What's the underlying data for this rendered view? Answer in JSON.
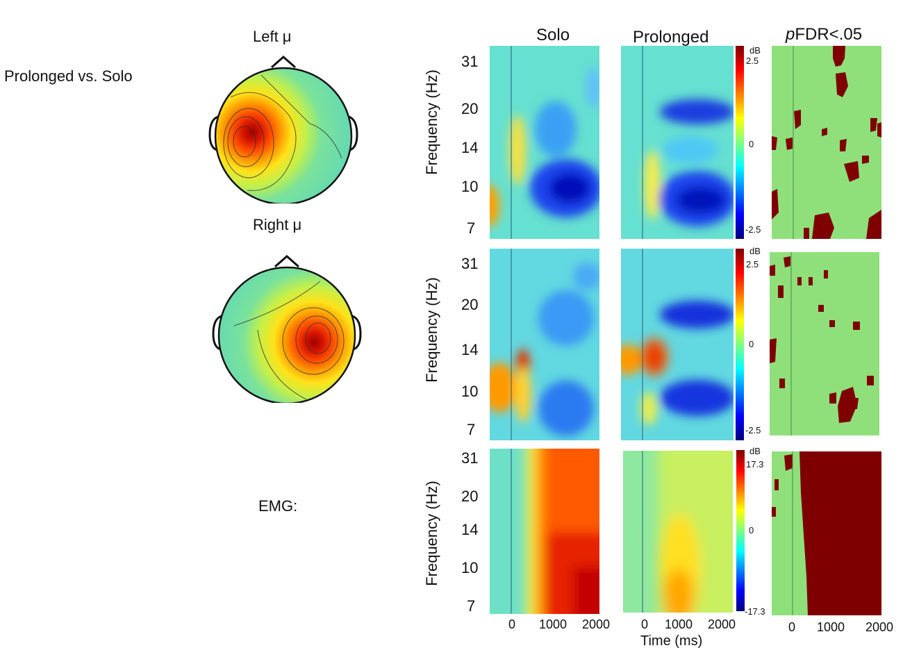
{
  "figure": {
    "comparison_label": "Prolonged vs. Solo",
    "emg_label": "EMG:",
    "topo_labels": [
      "Left μ",
      "Right μ"
    ],
    "column_titles": {
      "solo": "Solo",
      "prolonged": "Prolonged",
      "sig_prefix": "p",
      "sig_rest": "FDR<.05"
    },
    "y_axis_label": "Frequency (Hz)",
    "x_axis_label": "Time (ms)",
    "y_ticks": [
      "31",
      "20",
      "14",
      "10",
      "7"
    ],
    "x_ticks": [
      "0",
      "1000",
      "2000"
    ],
    "colorbar_unit": "dB"
  },
  "colors": {
    "mask_sig": "#7f0000",
    "mask_nonsig": "#8fe07a",
    "jet": [
      "#00007f",
      "#0000ff",
      "#007fff",
      "#00ffff",
      "#7fff7f",
      "#ffff00",
      "#ff7f00",
      "#ff0000",
      "#7f0000"
    ]
  },
  "chart_data": [
    {
      "type": "heatmap",
      "row": "Left μ",
      "xlabel": "Time (ms)",
      "ylabel": "Frequency (Hz)",
      "xlim": [
        -500,
        2000
      ],
      "y_ticks": [
        31,
        20,
        14,
        10,
        7
      ],
      "colorbar": {
        "unit": "dB",
        "max_label": "2.5",
        "mid_label": "0",
        "min_label": "-2.5",
        "range": [
          -2.5,
          2.5
        ]
      },
      "panels": [
        {
          "name": "Solo",
          "description": "alpha/beta desynchronization 200-2000 ms, strongest near 10 Hz"
        },
        {
          "name": "Prolonged",
          "description": "sustained desynchronization 300-2000 ms around 10 Hz and 20 Hz"
        },
        {
          "name": "pFDR<.05",
          "description": "sparse significant clusters"
        }
      ]
    },
    {
      "type": "heatmap",
      "row": "Right μ",
      "xlabel": "Time (ms)",
      "ylabel": "Frequency (Hz)",
      "xlim": [
        -500,
        2000
      ],
      "y_ticks": [
        31,
        20,
        14,
        10,
        7
      ],
      "colorbar": {
        "unit": "dB",
        "max_label": "2.5",
        "mid_label": "0",
        "min_label": "-2.5",
        "range": [
          -2.5,
          2.5
        ]
      },
      "panels": [
        {
          "name": "Solo",
          "description": "early synchronization near 12 Hz around 0-200 ms, later desynchronization"
        },
        {
          "name": "Prolonged",
          "description": "early synchronization near 12 Hz, desynchronization bands at 10 and 20 Hz"
        },
        {
          "name": "pFDR<.05",
          "description": "sparse significant clusters"
        }
      ]
    },
    {
      "type": "heatmap",
      "row": "EMG",
      "xlabel": "Time (ms)",
      "ylabel": "Frequency (Hz)",
      "xlim": [
        -500,
        2000
      ],
      "y_ticks": [
        31,
        20,
        14,
        10,
        7
      ],
      "colorbar": {
        "unit": "dB",
        "max_label": "17.3",
        "mid_label": "0",
        "min_label": "-17.3",
        "range": [
          -17.3,
          17.3
        ]
      },
      "panels": [
        {
          "name": "Solo",
          "description": "broadband power increase from ~300 ms, strongest at low frequencies"
        },
        {
          "name": "Prolonged",
          "description": "moderate increase centered ~800 ms below 14 Hz"
        },
        {
          "name": "pFDR<.05",
          "description": "significant from ~300 ms onward across all frequencies"
        }
      ]
    }
  ]
}
